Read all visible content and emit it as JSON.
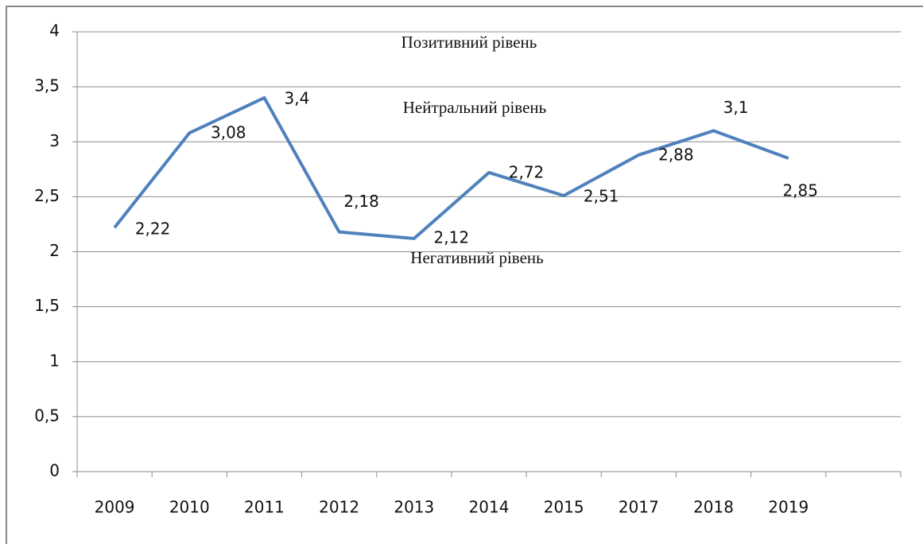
{
  "chart_data": {
    "type": "line",
    "categories": [
      "2009",
      "2010",
      "2011",
      "2012",
      "2013",
      "2014",
      "2015",
      "2017",
      "2018",
      "2019",
      null
    ],
    "series": [
      {
        "color": "#4f81bd",
        "values": [
          2.22,
          3.08,
          3.4,
          2.18,
          2.12,
          2.72,
          2.51,
          2.88,
          3.1,
          2.85,
          null
        ],
        "value_labels": [
          "2,22",
          "3,08",
          "3,4",
          "2,18",
          "2,12",
          "2,72",
          "2,51",
          "2,88",
          "3,1",
          "2,85",
          null
        ]
      }
    ],
    "ylim": [
      0,
      4
    ],
    "yticks": [
      0,
      {
        "value": 0.5,
        "label": "0,5"
      },
      1,
      {
        "value": 1.5,
        "label": "1,5"
      },
      2,
      {
        "value": 2.5,
        "label": "2,5"
      },
      3,
      {
        "value": 3.5,
        "label": "3,5"
      },
      4
    ],
    "grid": true,
    "annotations": [
      "Позитивний рівень",
      "Нейтральний рівень",
      "Негативний рівень"
    ]
  }
}
